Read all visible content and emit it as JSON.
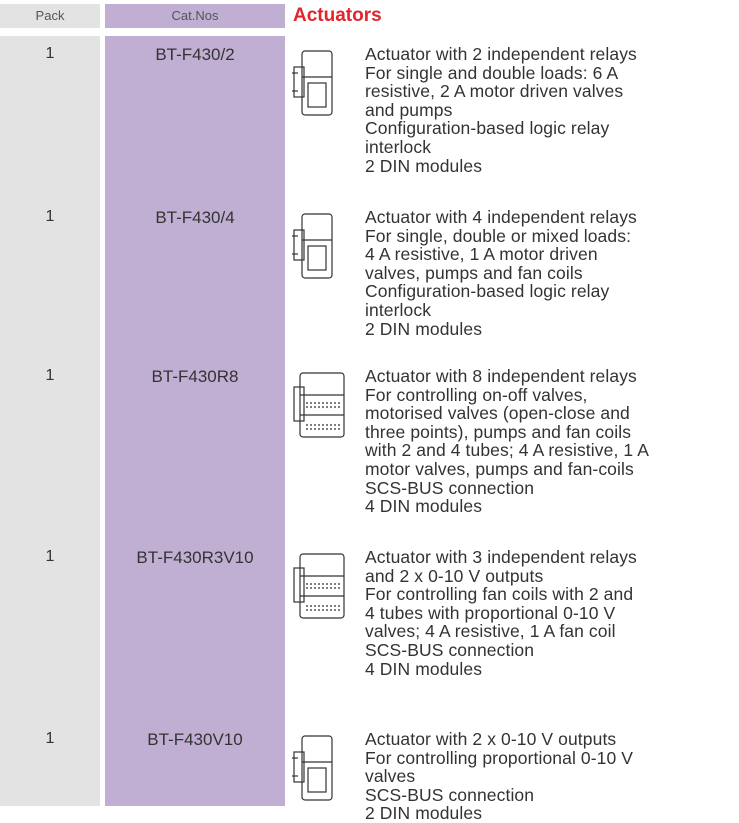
{
  "header": {
    "pack": "Pack",
    "cat_nos": "Cat.Nos",
    "title": "Actuators"
  },
  "rows": [
    {
      "pack": "1",
      "cat": "BT-F430/2",
      "lines": [
        "Actuator with 2 independent relays",
        "For single and double loads: 6 A",
        "resistive, 2 A motor driven valves",
        "and pumps",
        "Configuration-based logic relay",
        "interlock",
        "2 DIN modules"
      ]
    },
    {
      "pack": "1",
      "cat": "BT-F430/4",
      "lines": [
        "Actuator with 4 independent relays",
        "For single, double or mixed loads:",
        "4 A resistive, 1 A motor driven",
        "valves, pumps and fan coils",
        "Configuration-based logic relay",
        "interlock",
        "2 DIN modules"
      ]
    },
    {
      "pack": "1",
      "cat": "BT-F430R8",
      "lines": [
        "Actuator with 8 independent relays",
        "For controlling on-off valves,",
        "motorised valves (open-close and",
        "three points), pumps and fan coils",
        "with 2 and 4 tubes; 4 A resistive, 1 A",
        "motor valves, pumps and fan-coils",
        "SCS-BUS connection",
        "4 DIN modules"
      ]
    },
    {
      "pack": "1",
      "cat": "BT-F430R3V10",
      "lines": [
        "Actuator with 3 independent relays",
        "and 2 x 0-10 V outputs",
        "For controlling fan coils with 2 and",
        "4 tubes with proportional 0-10 V",
        "valves; 4 A resistive, 1 A fan coil",
        "SCS-BUS connection",
        "4 DIN modules"
      ]
    },
    {
      "pack": "1",
      "cat": "BT-F430V10",
      "lines": [
        "Actuator with 2 x 0-10 V outputs",
        "For controlling proportional 0-10 V",
        "valves",
        "SCS-BUS connection",
        "2 DIN modules"
      ]
    }
  ]
}
